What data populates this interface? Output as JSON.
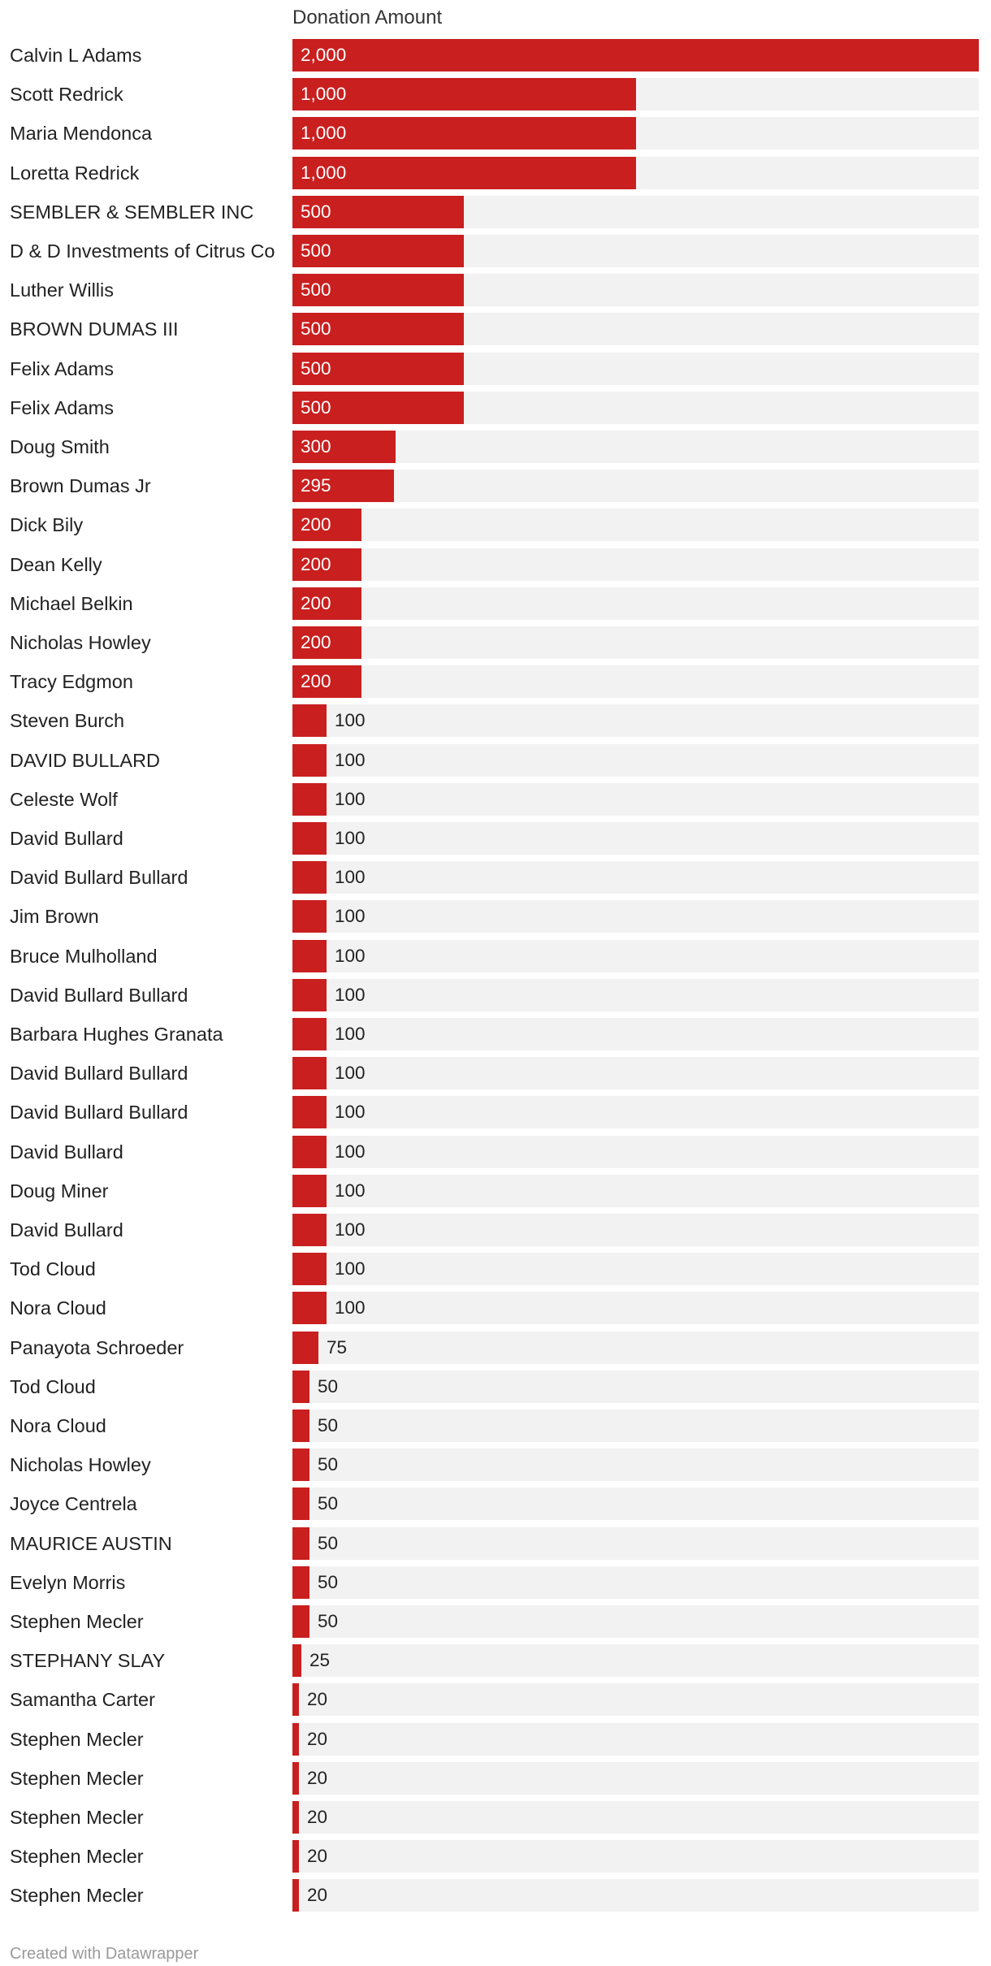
{
  "chart_data": {
    "type": "bar",
    "orientation": "horizontal",
    "header": "Donation Amount",
    "xlim": [
      0,
      2000
    ],
    "colors": {
      "bar": "#c91f1f",
      "track": "#f2f2f2"
    },
    "categories": [
      "Calvin L Adams",
      "Scott Redrick",
      "Maria Mendonca",
      "Loretta Redrick",
      "SEMBLER & SEMBLER INC",
      "D & D Investments of Citrus Co",
      "Luther Willis",
      "BROWN DUMAS III",
      "Felix Adams",
      "Felix Adams",
      "Doug Smith",
      "Brown Dumas Jr",
      "Dick Bily",
      "Dean Kelly",
      "Michael Belkin",
      "Nicholas Howley",
      "Tracy Edgmon",
      "Steven Burch",
      "DAVID BULLARD",
      "Celeste Wolf",
      "David Bullard",
      "David Bullard Bullard",
      "Jim Brown",
      "Bruce Mulholland",
      "David Bullard Bullard",
      "Barbara Hughes Granata",
      "David Bullard Bullard",
      "David Bullard Bullard",
      "David Bullard",
      "Doug Miner",
      "David Bullard",
      "Tod Cloud",
      "Nora Cloud",
      "Panayota Schroeder",
      "Tod Cloud",
      "Nora Cloud",
      "Nicholas Howley",
      "Joyce Centrela",
      "MAURICE AUSTIN",
      "Evelyn Morris",
      "Stephen Mecler",
      "STEPHANY SLAY",
      "Samantha Carter",
      "Stephen Mecler",
      "Stephen Mecler",
      "Stephen Mecler",
      "Stephen Mecler",
      "Stephen Mecler"
    ],
    "values": [
      2000,
      1000,
      1000,
      1000,
      500,
      500,
      500,
      500,
      500,
      500,
      300,
      295,
      200,
      200,
      200,
      200,
      200,
      100,
      100,
      100,
      100,
      100,
      100,
      100,
      100,
      100,
      100,
      100,
      100,
      100,
      100,
      100,
      100,
      75,
      50,
      50,
      50,
      50,
      50,
      50,
      50,
      25,
      20,
      20,
      20,
      20,
      20,
      20
    ],
    "value_labels": [
      "2,000",
      "1,000",
      "1,000",
      "1,000",
      "500",
      "500",
      "500",
      "500",
      "500",
      "500",
      "300",
      "295",
      "200",
      "200",
      "200",
      "200",
      "200",
      "100",
      "100",
      "100",
      "100",
      "100",
      "100",
      "100",
      "100",
      "100",
      "100",
      "100",
      "100",
      "100",
      "100",
      "100",
      "100",
      "75",
      "50",
      "50",
      "50",
      "50",
      "50",
      "50",
      "50",
      "25",
      "20",
      "20",
      "20",
      "20",
      "20",
      "20"
    ]
  },
  "footer": "Created with Datawrapper"
}
